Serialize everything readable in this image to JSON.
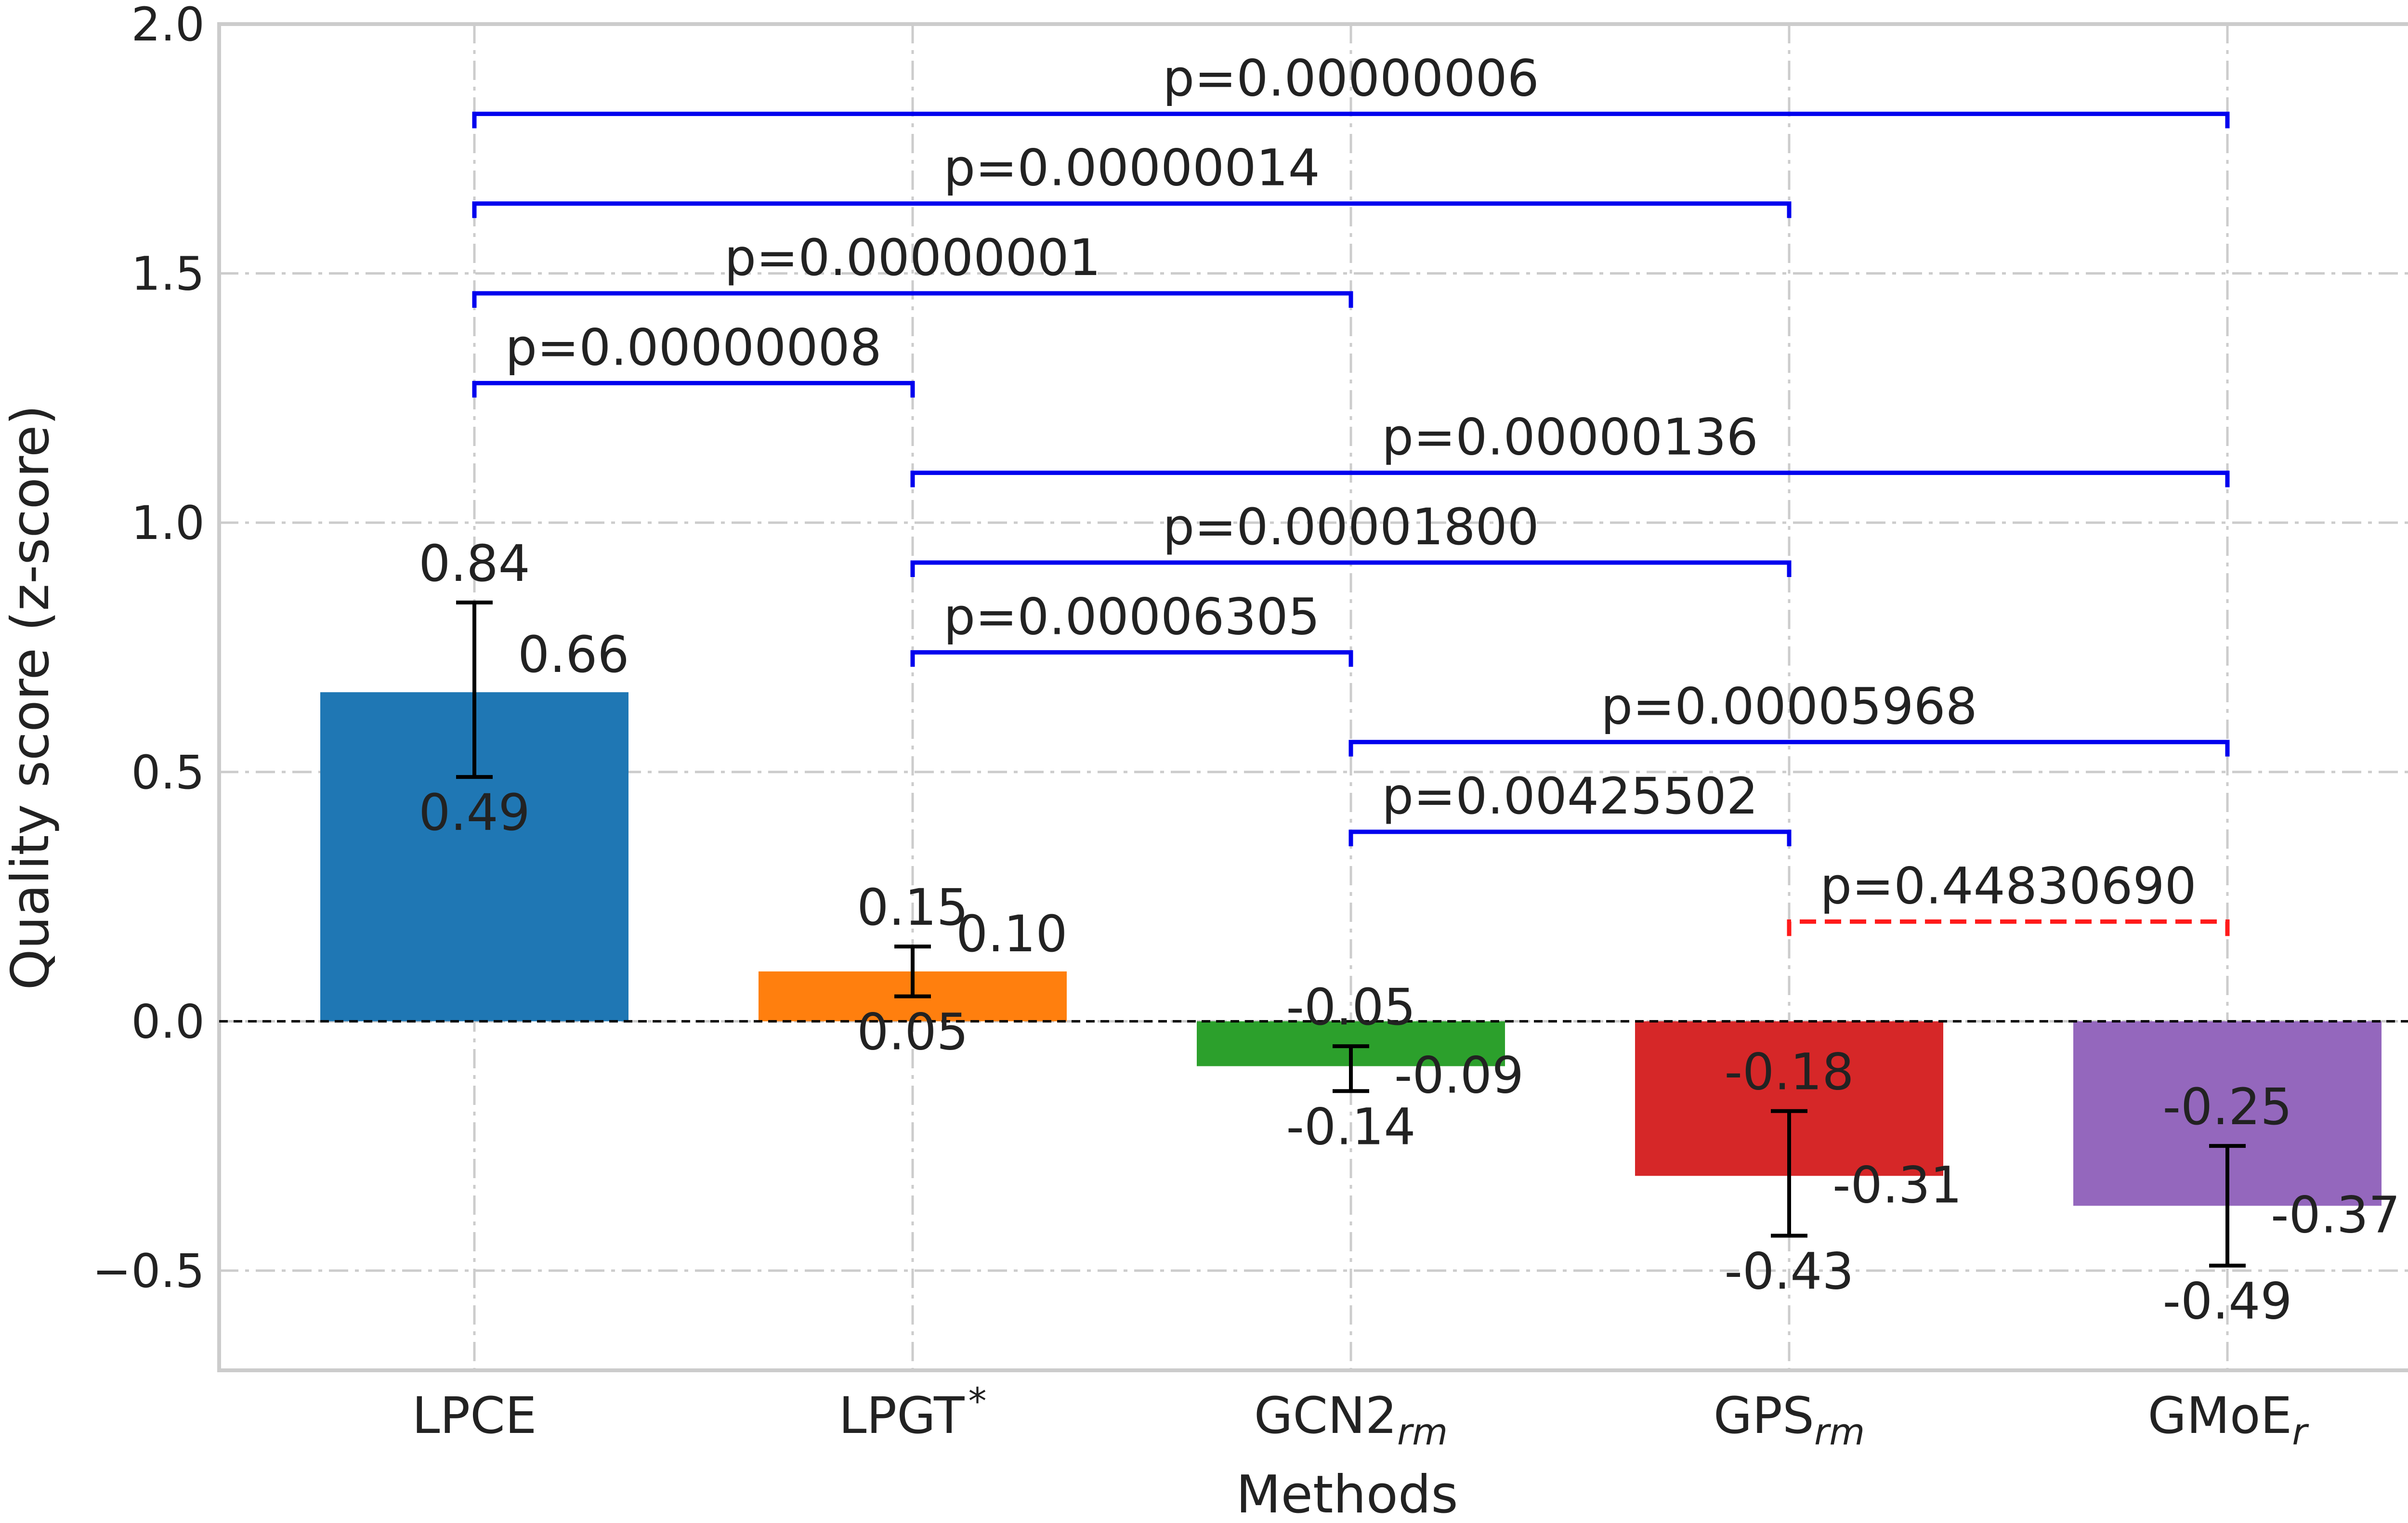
{
  "chart_data": {
    "type": "bar",
    "xlabel": "Methods",
    "ylabel": "Quality score (z-score)",
    "ylim": [
      -0.7,
      2.0
    ],
    "yticks": [
      -0.5,
      0.0,
      0.5,
      1.0,
      1.5,
      2.0
    ],
    "ytick_labels": [
      "−0.5",
      "0.0",
      "0.5",
      "1.0",
      "1.5",
      "2.0"
    ],
    "grid": true,
    "zero_line": true,
    "categories": [
      {
        "base": "LPCE",
        "sub": "",
        "sup": ""
      },
      {
        "base": "LPGT",
        "sub": "",
        "sup": "*"
      },
      {
        "base": "GCN2",
        "sub": "rm",
        "sup": ""
      },
      {
        "base": "GPS",
        "sub": "rm",
        "sup": ""
      },
      {
        "base": "GMoE",
        "sub": "r",
        "sup": ""
      }
    ],
    "values": [
      0.66,
      0.1,
      -0.09,
      -0.31,
      -0.37
    ],
    "value_labels": [
      "0.66",
      "0.10",
      "-0.09",
      "-0.31",
      "-0.37"
    ],
    "err_high": [
      0.84,
      0.15,
      -0.05,
      -0.18,
      -0.25
    ],
    "err_high_labels": [
      "0.84",
      "0.15",
      "-0.05",
      "-0.18",
      "-0.25"
    ],
    "err_low": [
      0.49,
      0.05,
      -0.14,
      -0.43,
      -0.49
    ],
    "err_low_labels": [
      "0.49",
      "0.05",
      "-0.14",
      "-0.43",
      "-0.49"
    ],
    "colors": [
      "#1f77b4",
      "#ff7f0e",
      "#2ca02c",
      "#d62728",
      "#9467bd"
    ],
    "comparisons": [
      {
        "from": 0,
        "to": 4,
        "y": 1.82,
        "label": "p=0.00000006",
        "significant": true
      },
      {
        "from": 0,
        "to": 3,
        "y": 1.64,
        "label": "p=0.00000014",
        "significant": true
      },
      {
        "from": 0,
        "to": 2,
        "y": 1.46,
        "label": "p=0.00000001",
        "significant": true
      },
      {
        "from": 0,
        "to": 1,
        "y": 1.28,
        "label": "p=0.00000008",
        "significant": true
      },
      {
        "from": 1,
        "to": 4,
        "y": 1.1,
        "label": "p=0.00000136",
        "significant": true
      },
      {
        "from": 1,
        "to": 3,
        "y": 0.92,
        "label": "p=0.00001800",
        "significant": true
      },
      {
        "from": 1,
        "to": 2,
        "y": 0.74,
        "label": "p=0.00006305",
        "significant": true
      },
      {
        "from": 2,
        "to": 4,
        "y": 0.56,
        "label": "p=0.00005968",
        "significant": true
      },
      {
        "from": 2,
        "to": 3,
        "y": 0.38,
        "label": "p=0.00425502",
        "significant": true
      },
      {
        "from": 3,
        "to": 4,
        "y": 0.2,
        "label": "p=0.44830690",
        "significant": false
      }
    ],
    "bracket_color_significant": "#0000ee",
    "bracket_color_not_significant": "#ff1a1a"
  }
}
